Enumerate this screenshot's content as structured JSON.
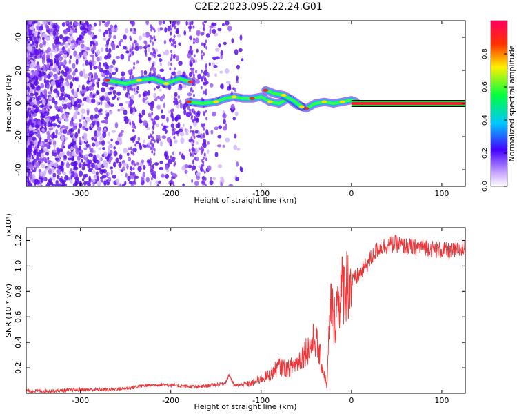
{
  "title": "C2E2.2023.095.22.24.G01",
  "chart_data": [
    {
      "type": "heatmap",
      "xlabel": "Height of straight line (km)",
      "ylabel": "Frequency (Hz)",
      "xlim": [
        -360,
        126
      ],
      "ylim": [
        -50,
        50
      ],
      "xticks": [
        -300,
        -200,
        -100,
        0,
        100
      ],
      "yticks": [
        -40,
        -20,
        0,
        20,
        40
      ],
      "colorbar": {
        "label": "Normalized spectral amplitude",
        "range": [
          0,
          1
        ],
        "ticks": [
          "0.0",
          "0.2",
          "0.4",
          "0.6",
          "0.8"
        ]
      },
      "trace": {
        "segments": [
          {
            "x": [
              -270,
              -250,
              -235,
              -220,
              -205,
              -190,
              -178
            ],
            "y": [
              14,
              12,
              14,
              15,
              12,
              15,
              13
            ]
          },
          {
            "x": [
              -180,
              -165,
              -150,
              -140,
              -130,
              -120,
              -110,
              -100,
              -90,
              -80,
              -70,
              -60,
              -50,
              -40,
              -30,
              -20,
              -10,
              0,
              5
            ],
            "y": [
              1,
              0,
              1,
              3,
              4,
              3,
              3,
              4,
              1,
              0,
              3,
              -1,
              -3,
              0,
              1,
              0,
              1,
              2,
              1
            ]
          },
          {
            "x": [
              -95,
              -85,
              -75,
              -65,
              -55
            ],
            "y": [
              8,
              6,
              5,
              2,
              -2
            ]
          }
        ],
        "carrier": {
          "x": [
            0,
            126
          ],
          "y": [
            0,
            0
          ]
        }
      },
      "grid": false
    },
    {
      "type": "line",
      "xlabel": "Height of straight line (km)",
      "ylabel": "SNR (10 * v/v)",
      "y_multiplier": "(x10⁴)",
      "xlim": [
        -360,
        126
      ],
      "ylim": [
        0,
        1.3
      ],
      "xticks": [
        -300,
        -200,
        -100,
        0,
        100
      ],
      "yticks": [
        0.2,
        0.4,
        0.6,
        0.8,
        1.0,
        1.2
      ],
      "series": [
        {
          "color": "#e8383b",
          "x": [
            -360,
            -330,
            -300,
            -270,
            -250,
            -230,
            -210,
            -190,
            -170,
            -150,
            -140,
            -135,
            -130,
            -120,
            -110,
            -100,
            -90,
            -80,
            -70,
            -60,
            -50,
            -45,
            -40,
            -35,
            -30,
            -27,
            -25,
            -22,
            -20,
            -15,
            -10,
            -5,
            0,
            10,
            20,
            30,
            40,
            50,
            60,
            70,
            80,
            90,
            100,
            110,
            126
          ],
          "values": [
            0.02,
            0.02,
            0.03,
            0.03,
            0.04,
            0.06,
            0.07,
            0.06,
            0.05,
            0.07,
            0.08,
            0.15,
            0.06,
            0.07,
            0.08,
            0.12,
            0.15,
            0.22,
            0.2,
            0.25,
            0.35,
            0.38,
            0.45,
            0.3,
            0.15,
            0.05,
            0.45,
            0.8,
            0.55,
            0.75,
            0.85,
            0.9,
            0.88,
            0.95,
            1.05,
            1.15,
            1.17,
            1.18,
            1.16,
            1.15,
            1.16,
            1.14,
            1.13,
            1.12,
            1.14
          ]
        }
      ],
      "grid": false
    }
  ]
}
